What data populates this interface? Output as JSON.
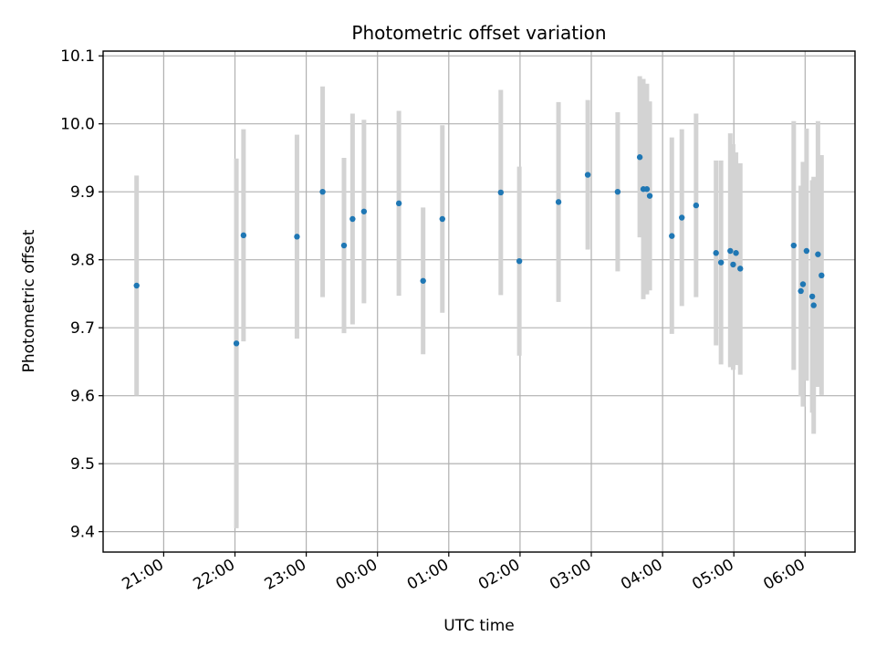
{
  "chart_data": {
    "type": "scatter",
    "title": "Photometric offset variation",
    "xlabel": "UTC time",
    "ylabel": "Photometric offset",
    "x_unit": "hours relative to 00:00 UTC",
    "xlim": [
      -3.85,
      6.7
    ],
    "ylim": [
      9.37,
      10.107
    ],
    "x_ticks": [
      {
        "value": -3,
        "label": "21:00"
      },
      {
        "value": -2,
        "label": "22:00"
      },
      {
        "value": -1,
        "label": "23:00"
      },
      {
        "value": 0,
        "label": "00:00"
      },
      {
        "value": 1,
        "label": "01:00"
      },
      {
        "value": 2,
        "label": "02:00"
      },
      {
        "value": 3,
        "label": "03:00"
      },
      {
        "value": 4,
        "label": "04:00"
      },
      {
        "value": 5,
        "label": "05:00"
      },
      {
        "value": 6,
        "label": "06:00"
      }
    ],
    "y_ticks": [
      {
        "value": 9.4,
        "label": "9.4"
      },
      {
        "value": 9.5,
        "label": "9.5"
      },
      {
        "value": 9.6,
        "label": "9.6"
      },
      {
        "value": 9.7,
        "label": "9.7"
      },
      {
        "value": 9.8,
        "label": "9.8"
      },
      {
        "value": 9.9,
        "label": "9.9"
      },
      {
        "value": 10.0,
        "label": "10.0"
      },
      {
        "value": 10.1,
        "label": "10.1"
      }
    ],
    "grid": true,
    "marker_color": "#1f77b4",
    "errorbar_color": "#d3d3d3",
    "points": [
      {
        "x": -3.38,
        "y": 9.762,
        "lo": 9.6,
        "hi": 9.924
      },
      {
        "x": -1.98,
        "y": 9.677,
        "lo": 9.405,
        "hi": 9.949
      },
      {
        "x": -1.88,
        "y": 9.836,
        "lo": 9.68,
        "hi": 9.992
      },
      {
        "x": -1.13,
        "y": 9.834,
        "lo": 9.684,
        "hi": 9.984
      },
      {
        "x": -0.77,
        "y": 9.9,
        "lo": 9.745,
        "hi": 10.055
      },
      {
        "x": -0.47,
        "y": 9.821,
        "lo": 9.692,
        "hi": 9.95
      },
      {
        "x": -0.35,
        "y": 9.86,
        "lo": 9.705,
        "hi": 10.015
      },
      {
        "x": -0.19,
        "y": 9.871,
        "lo": 9.736,
        "hi": 10.006
      },
      {
        "x": 0.3,
        "y": 9.883,
        "lo": 9.747,
        "hi": 10.019
      },
      {
        "x": 0.64,
        "y": 9.769,
        "lo": 9.661,
        "hi": 9.877
      },
      {
        "x": 0.91,
        "y": 9.86,
        "lo": 9.722,
        "hi": 9.998
      },
      {
        "x": 1.73,
        "y": 9.899,
        "lo": 9.748,
        "hi": 10.05
      },
      {
        "x": 1.99,
        "y": 9.798,
        "lo": 9.659,
        "hi": 9.937
      },
      {
        "x": 2.54,
        "y": 9.885,
        "lo": 9.738,
        "hi": 10.032
      },
      {
        "x": 2.95,
        "y": 9.925,
        "lo": 9.815,
        "hi": 10.035
      },
      {
        "x": 3.37,
        "y": 9.9,
        "lo": 9.783,
        "hi": 10.017
      },
      {
        "x": 3.68,
        "y": 9.951,
        "lo": 9.833,
        "hi": 10.07
      },
      {
        "x": 3.73,
        "y": 9.904,
        "lo": 9.742,
        "hi": 10.066
      },
      {
        "x": 3.78,
        "y": 9.904,
        "lo": 9.749,
        "hi": 10.059
      },
      {
        "x": 3.82,
        "y": 9.894,
        "lo": 9.755,
        "hi": 10.033
      },
      {
        "x": 4.13,
        "y": 9.835,
        "lo": 9.691,
        "hi": 9.98
      },
      {
        "x": 4.27,
        "y": 9.862,
        "lo": 9.732,
        "hi": 9.992
      },
      {
        "x": 4.47,
        "y": 9.88,
        "lo": 9.745,
        "hi": 10.015
      },
      {
        "x": 4.75,
        "y": 9.81,
        "lo": 9.674,
        "hi": 9.946
      },
      {
        "x": 4.82,
        "y": 9.796,
        "lo": 9.646,
        "hi": 9.946
      },
      {
        "x": 4.95,
        "y": 9.813,
        "lo": 9.642,
        "hi": 9.986
      },
      {
        "x": 4.99,
        "y": 9.793,
        "lo": 9.638,
        "hi": 9.97
      },
      {
        "x": 5.03,
        "y": 9.81,
        "lo": 9.645,
        "hi": 9.958
      },
      {
        "x": 5.09,
        "y": 9.787,
        "lo": 9.631,
        "hi": 9.942
      },
      {
        "x": 5.84,
        "y": 9.821,
        "lo": 9.638,
        "hi": 10.004
      },
      {
        "x": 5.94,
        "y": 9.754,
        "lo": 9.599,
        "hi": 9.909
      },
      {
        "x": 5.97,
        "y": 9.764,
        "lo": 9.584,
        "hi": 9.944
      },
      {
        "x": 6.02,
        "y": 9.813,
        "lo": 9.622,
        "hi": 9.993
      },
      {
        "x": 6.1,
        "y": 9.746,
        "lo": 9.575,
        "hi": 9.917
      },
      {
        "x": 6.12,
        "y": 9.733,
        "lo": 9.544,
        "hi": 9.922
      },
      {
        "x": 6.18,
        "y": 9.808,
        "lo": 9.613,
        "hi": 10.004
      },
      {
        "x": 6.23,
        "y": 9.777,
        "lo": 9.601,
        "hi": 9.954
      }
    ]
  }
}
